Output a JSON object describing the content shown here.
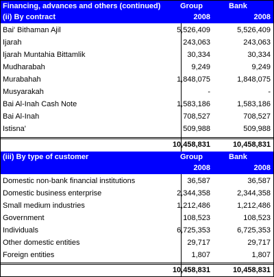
{
  "section1": {
    "heading": "Financing, advances and others (continued)",
    "subheading": "(ii)  By contract",
    "col_group": "Group",
    "col_bank": "Bank",
    "year_group": "2008",
    "year_bank": "2008",
    "rows": [
      {
        "label": "Bai' Bithaman Ajil",
        "group": "5,526,409",
        "bank": "5,526,409"
      },
      {
        "label": "Ijarah",
        "group": "243,063",
        "bank": "243,063"
      },
      {
        "label": "Ijarah Muntahia Bittamlik",
        "group": "30,334",
        "bank": "30,334"
      },
      {
        "label": "Mudharabah",
        "group": "9,249",
        "bank": "9,249"
      },
      {
        "label": "Murabahah",
        "group": "1,848,075",
        "bank": "1,848,075"
      },
      {
        "label": "Musyarakah",
        "group": "-",
        "bank": "-"
      },
      {
        "label": "Bai Al-Inah Cash Note",
        "group": "1,583,186",
        "bank": "1,583,186"
      },
      {
        "label": "Bai Al-Inah",
        "group": "708,527",
        "bank": "708,527"
      },
      {
        "label": "Istisna'",
        "group": "509,988",
        "bank": "509,988"
      }
    ],
    "total_group": "10,458,831",
    "total_bank": "10,458,831"
  },
  "section2": {
    "subheading": "(iii)  By type of customer",
    "col_group": "Group",
    "col_bank": "Bank",
    "year_group": "2008",
    "year_bank": "2008",
    "rows": [
      {
        "label": "Domestic non-bank financial institutions",
        "group": "36,587",
        "bank": "36,587"
      },
      {
        "label": "Domestic business enterprise",
        "group": "2,344,358",
        "bank": "2,344,358"
      },
      {
        "label": "Small medium industries",
        "group": "1,212,486",
        "bank": "1,212,486"
      },
      {
        "label": "Government",
        "group": "108,523",
        "bank": "108,523"
      },
      {
        "label": "Individuals",
        "group": "6,725,353",
        "bank": "6,725,353"
      },
      {
        "label": "Other domestic entities",
        "group": "29,717",
        "bank": "29,717"
      },
      {
        "label": "Foreign entities",
        "group": "1,807",
        "bank": "1,807"
      }
    ],
    "total_group": "10,458,831",
    "total_bank": "10,458,831"
  }
}
